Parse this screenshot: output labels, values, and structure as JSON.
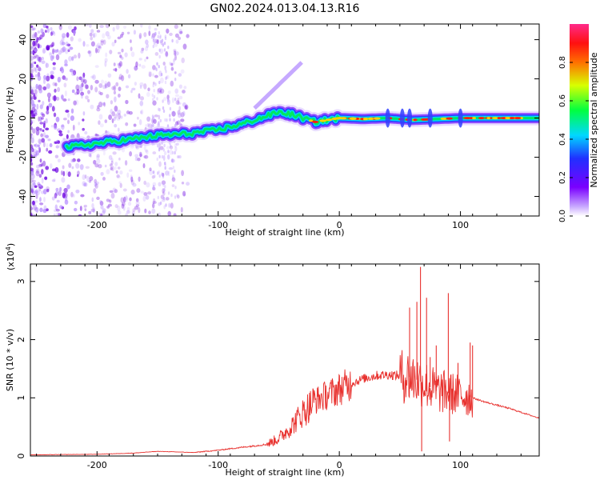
{
  "title": "GN02.2024.013.04.13.R16",
  "chart_data": [
    {
      "type": "heatmap",
      "xlabel": "Height of straight line (km)",
      "ylabel": "Frequency (Hz)",
      "xlim": [
        -255,
        165
      ],
      "ylim": [
        -50,
        48
      ],
      "x_ticks": [
        -200,
        -100,
        0,
        100
      ],
      "y_ticks": [
        -40,
        -20,
        0,
        20,
        40
      ],
      "colorbar": {
        "label": "Normalized spectral amplitude",
        "range": [
          0,
          1
        ],
        "ticks": [
          "0.0",
          "0.2",
          "0.4",
          "0.6",
          "0.8"
        ],
        "colormap": "rainbow (violet -> blue -> cyan -> green -> yellow -> red -> pink)"
      },
      "ridge": {
        "x": [
          -225,
          -200,
          -175,
          -150,
          -125,
          -100,
          -80,
          -60,
          -50,
          -40,
          -30,
          -20,
          0,
          20,
          40,
          60,
          80,
          100,
          120,
          165
        ],
        "y": [
          -15,
          -13,
          -11,
          -9,
          -8,
          -6,
          -3,
          1,
          3,
          2,
          0,
          -2,
          0,
          -0.5,
          0,
          -1,
          -0.5,
          0,
          0,
          0
        ]
      },
      "grid": false
    },
    {
      "type": "line",
      "xlabel": "Height of straight line (km)",
      "ylabel": "SNR (10 * v/v)",
      "scale_label": "(x10",
      "scale_exp": "4",
      "scale_close": ")",
      "xlim": [
        -255,
        165
      ],
      "ylim": [
        0,
        3.3
      ],
      "x_ticks": [
        -200,
        -100,
        0,
        100
      ],
      "y_ticks": [
        0,
        1,
        2,
        3
      ],
      "line_color": "#e8312e",
      "series": [
        {
          "x": [
            -255,
            -200,
            -170,
            -150,
            -120,
            -100,
            -80,
            -60,
            -50,
            -40,
            -30,
            -20,
            -10,
            0,
            10,
            20,
            30,
            40,
            50,
            55,
            60,
            65,
            70,
            75,
            80,
            90,
            100,
            110,
            120,
            140,
            165
          ],
          "y": [
            0.02,
            0.03,
            0.05,
            0.08,
            0.06,
            0.1,
            0.15,
            0.2,
            0.3,
            0.5,
            0.75,
            0.95,
            1.05,
            1.15,
            1.25,
            1.33,
            1.38,
            1.4,
            1.38,
            1.37,
            1.35,
            1.3,
            1.25,
            1.18,
            1.12,
            1.08,
            1.05,
            1.0,
            0.93,
            0.82,
            0.65
          ]
        }
      ],
      "spikes": [
        {
          "x": 58,
          "y": 2.55
        },
        {
          "x": 64,
          "y": 2.65
        },
        {
          "x": 67,
          "y": 3.25
        },
        {
          "x": 68,
          "y": 0.08
        },
        {
          "x": 72,
          "y": 2.72
        },
        {
          "x": 75,
          "y": 1.7
        },
        {
          "x": 80,
          "y": 1.9
        },
        {
          "x": 90,
          "y": 2.8
        },
        {
          "x": 91,
          "y": 0.25
        },
        {
          "x": 98,
          "y": 1.6
        },
        {
          "x": 108,
          "y": 1.95
        },
        {
          "x": 110,
          "y": 1.9
        }
      ],
      "grid": false
    }
  ]
}
